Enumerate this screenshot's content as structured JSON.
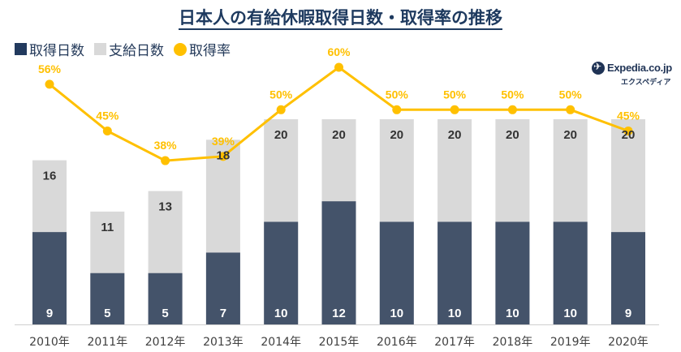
{
  "chart_data": {
    "type": "bar",
    "title": "日本人の有給休暇取得日数・取得率の推移",
    "categories": [
      "2010年",
      "2011年",
      "2012年",
      "2013年",
      "2014年",
      "2015年",
      "2016年",
      "2017年",
      "2018年",
      "2019年",
      "2020年"
    ],
    "series": [
      {
        "name": "取得日数",
        "kind": "bar",
        "color": "#44536a",
        "values": [
          9,
          5,
          5,
          7,
          10,
          12,
          10,
          10,
          10,
          10,
          9
        ]
      },
      {
        "name": "支給日数",
        "kind": "bar",
        "color": "#d9d9d9",
        "values": [
          16,
          11,
          13,
          18,
          20,
          20,
          20,
          20,
          20,
          20,
          20
        ]
      },
      {
        "name": "取得率",
        "kind": "line",
        "color": "#ffc000",
        "unit": "%",
        "values": [
          56,
          45,
          38,
          39,
          50,
          60,
          50,
          50,
          50,
          50,
          45
        ]
      }
    ],
    "legend": [
      {
        "label": "取得日数",
        "color": "#223a5e",
        "shape": "square"
      },
      {
        "label": "支給日数",
        "color": "#d9d9d9",
        "shape": "square"
      },
      {
        "label": "取得率",
        "color": "#ffc000",
        "shape": "circle"
      }
    ],
    "legend_position": "top-left",
    "xlabel": "",
    "ylabel": "",
    "ylim": [
      0,
      20
    ],
    "grid": false
  },
  "logo": {
    "brand": "Expedia.co.jp",
    "kana": "エクスペディア"
  }
}
